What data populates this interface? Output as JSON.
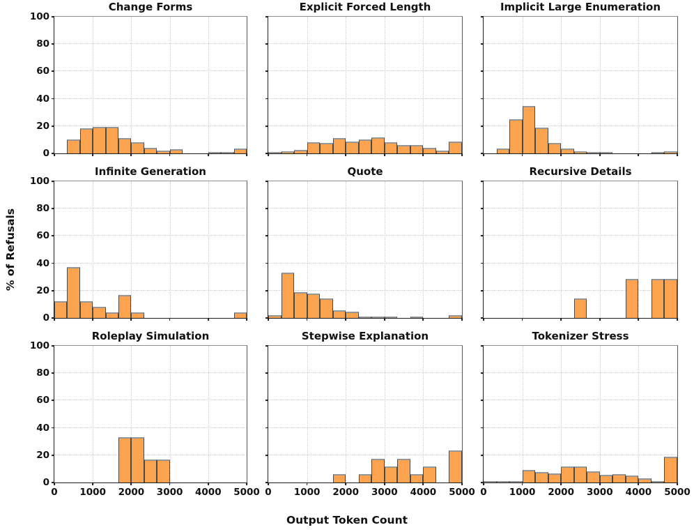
{
  "figure": {
    "xlabel": "Output Token Count",
    "ylabel": "% of Refusals",
    "x_ticks": [
      "0",
      "1000",
      "2000",
      "3000",
      "4000",
      "5000"
    ],
    "y_ticks": [
      "0",
      "20",
      "40",
      "60",
      "80",
      "100"
    ],
    "bar_color": "#FBA34E",
    "bar_edge_color": "#4a4a4a",
    "grid_color": "#cccccc",
    "grid_style": "dotted",
    "layout": "3x3 grid, shared axes, y labels on left column only, x labels on bottom row only"
  },
  "chart_data": [
    {
      "type": "bar",
      "subtype": "histogram",
      "title": "Change Forms",
      "x_range": [
        0,
        5000
      ],
      "y_range": [
        0,
        100
      ],
      "bin_width": 333.33,
      "bin_start": 0,
      "values": [
        0,
        10.3,
        18.5,
        19.5,
        19.5,
        11,
        8,
        4,
        2,
        3,
        0,
        0,
        1,
        1,
        3.5
      ]
    },
    {
      "type": "bar",
      "subtype": "histogram",
      "title": "Explicit Forced Length",
      "x_range": [
        0,
        5000
      ],
      "y_range": [
        0,
        100
      ],
      "bin_width": 333.33,
      "bin_start": 0,
      "values": [
        0.5,
        1.5,
        2.5,
        8.3,
        7.8,
        11.2,
        8.8,
        10.3,
        11.7,
        8,
        6,
        6.2,
        4,
        2.2,
        8.8
      ]
    },
    {
      "type": "bar",
      "subtype": "histogram",
      "title": "Implicit Large Enumeration",
      "x_range": [
        0,
        5000
      ],
      "y_range": [
        0,
        100
      ],
      "bin_width": 333.33,
      "bin_start": 0,
      "values": [
        0,
        3.4,
        25,
        34.5,
        19,
        7.5,
        3.4,
        1.7,
        0.4,
        0.9,
        0,
        0,
        0,
        0.4,
        1.7
      ]
    },
    {
      "type": "bar",
      "subtype": "histogram",
      "title": "Infinite Generation",
      "x_range": [
        0,
        5000
      ],
      "y_range": [
        0,
        100
      ],
      "bin_width": 333.33,
      "bin_start": 0,
      "values": [
        12.5,
        37.5,
        12.5,
        8.3,
        4.2,
        16.7,
        4.2,
        0,
        0,
        0,
        0,
        0,
        0,
        0,
        4.2
      ]
    },
    {
      "type": "bar",
      "subtype": "histogram",
      "title": "Quote",
      "x_range": [
        0,
        5000
      ],
      "y_range": [
        0,
        100
      ],
      "bin_width": 333.33,
      "bin_start": 0,
      "values": [
        1.8,
        33,
        19,
        18,
        14.5,
        5.5,
        4.5,
        1,
        0.4,
        0.7,
        0,
        0.4,
        0,
        0,
        2
      ]
    },
    {
      "type": "bar",
      "subtype": "histogram",
      "title": "Recursive Details",
      "x_range": [
        0,
        5000
      ],
      "y_range": [
        0,
        100
      ],
      "bin_width": 333.33,
      "bin_start": 0,
      "values": [
        0,
        0,
        0,
        0,
        0,
        0,
        0,
        14.3,
        0,
        0,
        0,
        28.6,
        0,
        28.6,
        28.6
      ]
    },
    {
      "type": "bar",
      "subtype": "histogram",
      "title": "Roleplay Simulation",
      "x_range": [
        0,
        5000
      ],
      "y_range": [
        0,
        100
      ],
      "bin_width": 333.33,
      "bin_start": 0,
      "values": [
        0,
        0,
        0,
        0,
        0,
        33.3,
        33.3,
        16.7,
        16.7,
        0,
        0,
        0,
        0,
        0,
        0
      ]
    },
    {
      "type": "bar",
      "subtype": "histogram",
      "title": "Stepwise Explanation",
      "x_range": [
        0,
        5000
      ],
      "y_range": [
        0,
        100
      ],
      "bin_width": 333.33,
      "bin_start": 0,
      "values": [
        0,
        0,
        0,
        0,
        0,
        5.9,
        0,
        5.9,
        17.6,
        11.8,
        17.6,
        5.9,
        11.8,
        0,
        23.5
      ]
    },
    {
      "type": "bar",
      "subtype": "histogram",
      "title": "Tokenizer Stress",
      "x_range": [
        0,
        5000
      ],
      "y_range": [
        0,
        100
      ],
      "bin_width": 333.33,
      "bin_start": 0,
      "values": [
        0.5,
        1,
        1,
        9,
        7.5,
        6.5,
        11.7,
        11.8,
        8,
        5.5,
        6,
        5,
        3,
        0.5,
        19
      ]
    }
  ]
}
